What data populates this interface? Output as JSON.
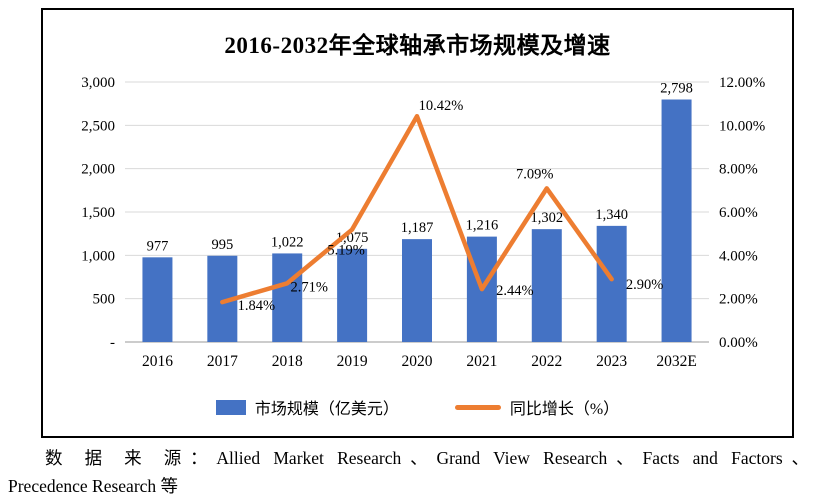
{
  "chart": {
    "source_line1": "数 据 来 源：Allied Market Research、Grand View Research、Facts and Factors、",
    "source_line2": "Precedence Research 等"
  },
  "chart_data": {
    "type": "bar",
    "subtype": "bar+line combo, dual axis",
    "title": "2016-2032年全球轴承市场规模及增速",
    "categories": [
      "2016",
      "2017",
      "2018",
      "2019",
      "2020",
      "2021",
      "2022",
      "2023",
      "2032E"
    ],
    "series": [
      {
        "name": "市场规模（亿美元）",
        "type": "bar",
        "axis": "left",
        "color": "#4472C4",
        "values": [
          977,
          995,
          1022,
          1075,
          1187,
          1216,
          1302,
          1340,
          2798
        ],
        "labels": [
          "977",
          "995",
          "1,022",
          "1,075",
          "1,187",
          "1,216",
          "1,302",
          "1,340",
          "2,798"
        ]
      },
      {
        "name": "同比增长（%）",
        "type": "line",
        "axis": "right",
        "color": "#ED7D31",
        "categories": [
          "2017",
          "2018",
          "2019",
          "2020",
          "2021",
          "2022",
          "2023"
        ],
        "values": [
          1.84,
          2.71,
          5.19,
          10.42,
          2.44,
          7.09,
          2.9
        ],
        "labels": [
          "1.84%",
          "2.71%",
          "5.19%",
          "10.42%",
          "2.44%",
          "7.09%",
          "2.90%"
        ]
      }
    ],
    "left_axis": {
      "min": 0,
      "max": 3000,
      "tick_step": 500,
      "tick_labels": [
        "3,000",
        "2,500",
        "2,000",
        "1,500",
        "1,000",
        "500",
        "-"
      ]
    },
    "right_axis": {
      "min": 0,
      "max": 12,
      "tick_step": 2,
      "tick_labels": [
        "12.00%",
        "10.00%",
        "8.00%",
        "6.00%",
        "4.00%",
        "2.00%",
        "0.00%"
      ]
    },
    "grid": true,
    "legend_position": "bottom"
  }
}
